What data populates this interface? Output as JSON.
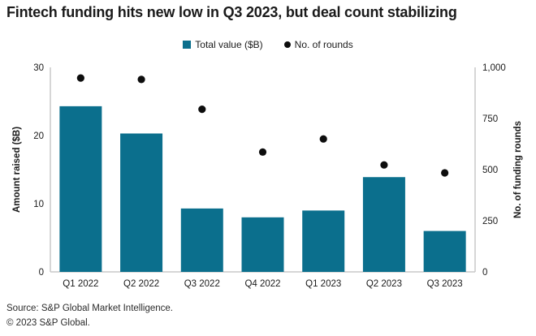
{
  "title": "Fintech funding hits new low in Q3 2023, but deal count stabilizing",
  "legend": [
    {
      "label": "Total value ($B)",
      "marker": "square-icon"
    },
    {
      "label": "No. of rounds",
      "marker": "dot-icon"
    }
  ],
  "colors": {
    "bar": "#0b6f8d",
    "dot": "#0d0d0d",
    "axis_line": "#c9c9c9",
    "text": "#1a1a1a"
  },
  "footer": {
    "source": "Source: S&P Global Market Intelligence.",
    "copyright": "© 2023 S&P Global."
  },
  "chart_data": {
    "type": "bar",
    "title": "Fintech funding hits new low in Q3 2023, but deal count stabilizing",
    "categories": [
      "Q1 2022",
      "Q2 2022",
      "Q3 2022",
      "Q4 2022",
      "Q1 2023",
      "Q2 2023",
      "Q3 2023"
    ],
    "series": [
      {
        "name": "Total value ($B)",
        "type": "bar",
        "axis": "left",
        "values": [
          24.3,
          20.3,
          9.3,
          8.0,
          9.0,
          13.9,
          6.0
        ]
      },
      {
        "name": "No. of rounds",
        "type": "scatter",
        "axis": "right",
        "values": [
          948,
          941,
          795,
          586,
          650,
          523,
          484
        ]
      }
    ],
    "left_axis": {
      "label": "Amount raised ($B)",
      "range": [
        0,
        30
      ],
      "ticks": [
        0,
        10,
        20,
        30
      ]
    },
    "right_axis": {
      "label": "No. of funding rounds",
      "range": [
        0,
        1000
      ],
      "ticks": [
        "0",
        "250",
        "500",
        "750",
        "1,000"
      ]
    },
    "grid": false,
    "legend_position": "top-center"
  }
}
